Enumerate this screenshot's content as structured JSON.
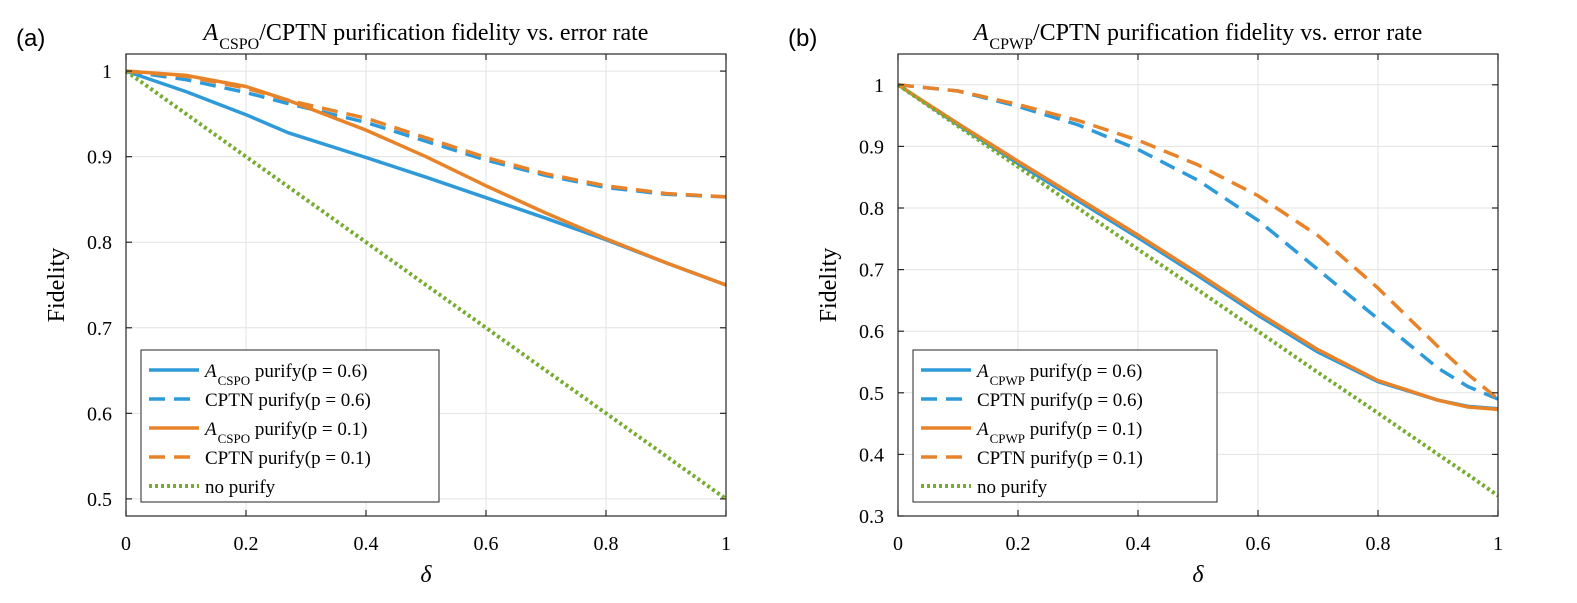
{
  "colors": {
    "blue": "#2f9ad9",
    "orange": "#e8832a",
    "green": "#77ac30"
  },
  "chart_data": [
    {
      "panel_label": "(a)",
      "type": "line",
      "title": {
        "main": "A",
        "sub": "CSPO",
        "rest": "/CPTN purification fidelity vs. error rate"
      },
      "xlabel": "δ",
      "ylabel": "Fidelity",
      "xlim": [
        0,
        1
      ],
      "ylim": [
        0.48,
        1.02
      ],
      "xticks": [
        0,
        0.2,
        0.4,
        0.6,
        0.8,
        1
      ],
      "xtick_labels": [
        "0",
        "0.2",
        "0.4",
        "0.6",
        "0.8",
        "1"
      ],
      "yticks": [
        0.5,
        0.6,
        0.7,
        0.8,
        0.9,
        1
      ],
      "ytick_labels": [
        "0.5",
        "0.6",
        "0.7",
        "0.8",
        "0.9",
        "1"
      ],
      "grid": true,
      "legend_position": "bottom-left",
      "x": [
        0,
        0.1,
        0.2,
        0.27,
        0.4,
        0.5,
        0.6,
        0.7,
        0.8,
        0.9,
        1.0
      ],
      "series": [
        {
          "name": "CSPO purify(p = 0.6)",
          "legend": {
            "cal": "A",
            "sub": "CSPO",
            "rest": " purify(p = 0.6)"
          },
          "color": "blue",
          "style": "solid",
          "values": [
            1.0,
            0.976,
            0.949,
            0.928,
            0.899,
            0.876,
            0.852,
            0.828,
            0.803,
            0.776,
            0.75
          ]
        },
        {
          "name": "CPTN purify(p = 0.6)",
          "legend": {
            "cal": "",
            "sub": "",
            "rest": "CPTN purify(p = 0.6)"
          },
          "color": "blue",
          "style": "dashed",
          "values": [
            1.0,
            0.99,
            0.975,
            0.962,
            0.94,
            0.918,
            0.896,
            0.878,
            0.864,
            0.856,
            0.853
          ]
        },
        {
          "name": "CSPO purify(p = 0.1)",
          "legend": {
            "cal": "A",
            "sub": "CSPO",
            "rest": " purify(p = 0.1)"
          },
          "color": "orange",
          "style": "solid",
          "values": [
            1.0,
            0.995,
            0.982,
            0.966,
            0.931,
            0.9,
            0.866,
            0.834,
            0.804,
            0.776,
            0.75
          ]
        },
        {
          "name": "CPTN purify(p = 0.1)",
          "legend": {
            "cal": "",
            "sub": "",
            "rest": "CPTN purify(p = 0.1)"
          },
          "color": "orange",
          "style": "dashed",
          "values": [
            1.0,
            0.994,
            0.98,
            0.966,
            0.945,
            0.922,
            0.899,
            0.88,
            0.866,
            0.857,
            0.853
          ]
        },
        {
          "name": "no purify",
          "legend": {
            "cal": "",
            "sub": "",
            "rest": "no purify"
          },
          "color": "green",
          "style": "dotted",
          "values": [
            1.0,
            0.95,
            0.9,
            0.865,
            0.8,
            0.75,
            0.7,
            0.65,
            0.6,
            0.55,
            0.5
          ]
        }
      ]
    },
    {
      "panel_label": "(b)",
      "type": "line",
      "title": {
        "main": "A",
        "sub": "CPWP",
        "rest": "/CPTN purification fidelity vs. error rate"
      },
      "xlabel": "δ",
      "ylabel": "Fidelity",
      "xlim": [
        0,
        1
      ],
      "ylim": [
        0.3,
        1.05
      ],
      "xticks": [
        0,
        0.2,
        0.4,
        0.6,
        0.8,
        1
      ],
      "xtick_labels": [
        "0",
        "0.2",
        "0.4",
        "0.6",
        "0.8",
        "1"
      ],
      "yticks": [
        0.3,
        0.4,
        0.5,
        0.6,
        0.7,
        0.8,
        0.9,
        1
      ],
      "ytick_labels": [
        "0.3",
        "0.4",
        "0.5",
        "0.6",
        "0.7",
        "0.8",
        "0.9",
        "1"
      ],
      "grid": true,
      "legend_position": "bottom-left",
      "x": [
        0,
        0.1,
        0.2,
        0.3,
        0.4,
        0.5,
        0.6,
        0.7,
        0.8,
        0.9,
        0.95,
        1.0
      ],
      "series": [
        {
          "name": "CPWP purify(p = 0.6)",
          "legend": {
            "cal": "A",
            "sub": "CPWP",
            "rest": " purify(p = 0.6)"
          },
          "color": "blue",
          "style": "solid",
          "values": [
            1.0,
            0.935,
            0.872,
            0.812,
            0.752,
            0.69,
            0.626,
            0.566,
            0.518,
            0.488,
            0.478,
            0.474
          ]
        },
        {
          "name": "CPTN purify(p = 0.6)",
          "legend": {
            "cal": "",
            "sub": "",
            "rest": "CPTN purify(p = 0.6)"
          },
          "color": "blue",
          "style": "dashed",
          "values": [
            1.0,
            0.99,
            0.965,
            0.935,
            0.895,
            0.845,
            0.78,
            0.7,
            0.62,
            0.54,
            0.51,
            0.49
          ]
        },
        {
          "name": "CPWP purify(p = 0.1)",
          "legend": {
            "cal": "A",
            "sub": "CPWP",
            "rest": " purify(p = 0.1)"
          },
          "color": "orange",
          "style": "solid",
          "values": [
            1.0,
            0.937,
            0.876,
            0.816,
            0.756,
            0.694,
            0.63,
            0.57,
            0.52,
            0.488,
            0.477,
            0.473
          ]
        },
        {
          "name": "CPTN purify(p = 0.1)",
          "legend": {
            "cal": "",
            "sub": "",
            "rest": "CPTN purify(p = 0.1)"
          },
          "color": "orange",
          "style": "dashed",
          "values": [
            1.0,
            0.99,
            0.968,
            0.942,
            0.91,
            0.87,
            0.82,
            0.755,
            0.67,
            0.575,
            0.53,
            0.49
          ]
        },
        {
          "name": "no purify",
          "legend": {
            "cal": "",
            "sub": "",
            "rest": "no purify"
          },
          "color": "green",
          "style": "dotted",
          "values": [
            1.0,
            0.933,
            0.867,
            0.8,
            0.733,
            0.667,
            0.6,
            0.533,
            0.467,
            0.4,
            0.367,
            0.333
          ]
        }
      ]
    }
  ]
}
